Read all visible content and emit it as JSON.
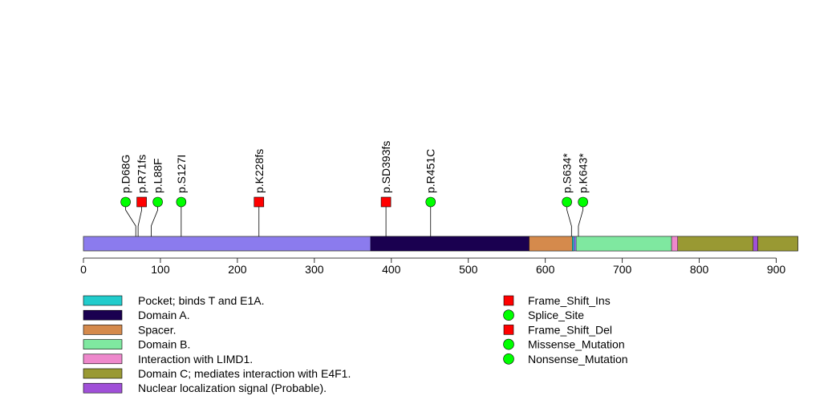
{
  "chart_data": {
    "type": "lollipop",
    "protein_length": 928,
    "x_axis": {
      "min": 0,
      "max": 900,
      "ticks": [
        0,
        100,
        200,
        300,
        400,
        500,
        600,
        700,
        800,
        900
      ]
    },
    "backbone_color": "#8B7BEE",
    "domains": [
      {
        "name": "Domain A.",
        "start": 373,
        "end": 579,
        "color": "#1A0050"
      },
      {
        "name": "Spacer.",
        "start": 579,
        "end": 635,
        "color": "#D58A4C"
      },
      {
        "name": "Pocket; binds T and E1A.",
        "start": 635,
        "end": 637,
        "color": "#22CCCC"
      },
      {
        "name": "Domain B.",
        "start": 640,
        "end": 764,
        "color": "#7FE8A0"
      },
      {
        "name": "Interaction with LIMD1.",
        "start": 764,
        "end": 772,
        "color": "#EE88CC"
      },
      {
        "name": "Domain C; mediates interaction with E4F1.",
        "start": 772,
        "end": 870,
        "color": "#999933"
      },
      {
        "name": "Nuclear localization signal (Probable).",
        "start": 870,
        "end": 876,
        "color": "#A050D8"
      },
      {
        "name": "Domain C; mediates interaction with E4F1.",
        "start": 876,
        "end": 928,
        "color": "#999933"
      }
    ],
    "mutations": [
      {
        "label": "p.D68G",
        "position": 68,
        "type": "Missense_Mutation"
      },
      {
        "label": "p.R71fs",
        "position": 71,
        "type": "Frame_Shift_Del"
      },
      {
        "label": "p.L88F",
        "position": 88,
        "type": "Missense_Mutation"
      },
      {
        "label": "p.S127I",
        "position": 127,
        "type": "Missense_Mutation"
      },
      {
        "label": "p.K228fs",
        "position": 228,
        "type": "Frame_Shift_Del"
      },
      {
        "label": "p.SD393fs",
        "position": 393,
        "type": "Frame_Shift_Del"
      },
      {
        "label": "p.R451C",
        "position": 451,
        "type": "Missense_Mutation"
      },
      {
        "label": "p.S634*",
        "position": 634,
        "type": "Nonsense_Mutation"
      },
      {
        "label": "p.K643*",
        "position": 643,
        "type": "Nonsense_Mutation"
      }
    ],
    "legend_domains": [
      {
        "label": "Pocket; binds T and E1A.",
        "color": "#22CCCC"
      },
      {
        "label": "Domain A.",
        "color": "#1A0050"
      },
      {
        "label": "Spacer.",
        "color": "#D58A4C"
      },
      {
        "label": "Domain B.",
        "color": "#7FE8A0"
      },
      {
        "label": "Interaction with LIMD1.",
        "color": "#EE88CC"
      },
      {
        "label": "Domain C; mediates interaction with E4F1.",
        "color": "#999933"
      },
      {
        "label": "Nuclear localization signal (Probable).",
        "color": "#A050D8"
      }
    ],
    "legend_mutations": [
      {
        "label": "Frame_Shift_Ins",
        "shape": "square",
        "color": "#FF0000"
      },
      {
        "label": "Splice_Site",
        "shape": "circle",
        "color": "#00FF00"
      },
      {
        "label": "Frame_Shift_Del",
        "shape": "square",
        "color": "#FF0000"
      },
      {
        "label": "Missense_Mutation",
        "shape": "circle",
        "color": "#00FF00"
      },
      {
        "label": "Nonsense_Mutation",
        "shape": "circle",
        "color": "#00FF00"
      }
    ],
    "marker_colors": {
      "square": "#FF0000",
      "circle": "#00FF00"
    }
  }
}
